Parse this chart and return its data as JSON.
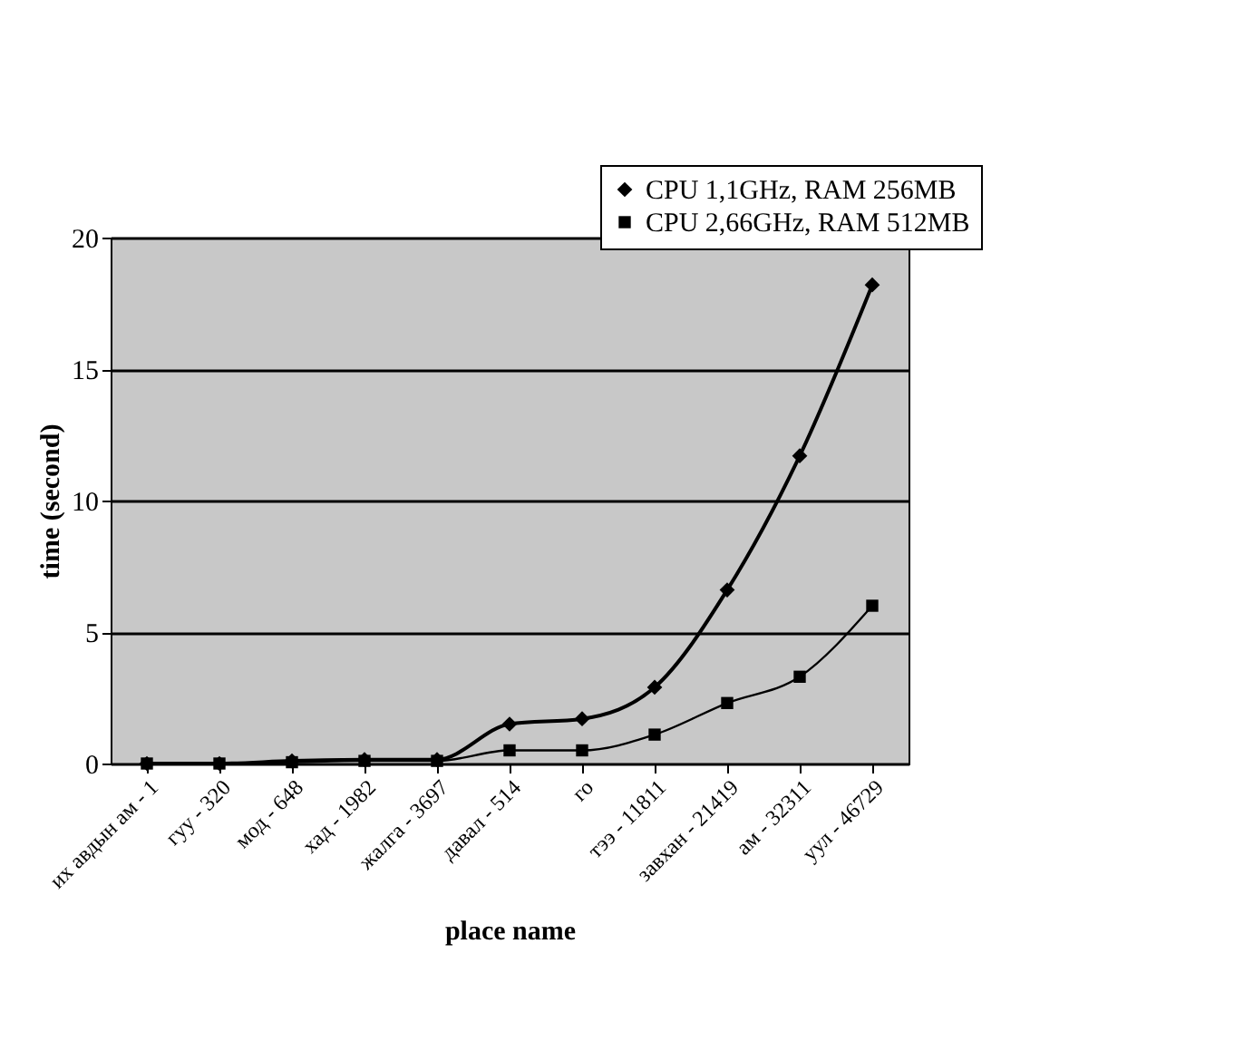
{
  "chart_data": {
    "type": "line",
    "xlabel": "place name",
    "ylabel": "time (second)",
    "categories": [
      "их авдын ам - 1",
      "гуу - 320",
      "мод - 648",
      "хад - 1982",
      "жалга - 3697",
      "давал - 514",
      "го",
      "тээ - 11811",
      "завхан - 21419",
      "ам - 32311",
      "уул - 46729"
    ],
    "series": [
      {
        "name": "CPU 1,1GHz, RAM 256MB",
        "color": "#000000",
        "marker": "diamond",
        "values": [
          0,
          0,
          0.1,
          0.15,
          0.15,
          1.5,
          1.7,
          2.9,
          6.6,
          11.7,
          18.2
        ]
      },
      {
        "name": "CPU 2,66GHz, RAM 512MB",
        "color": "#000000",
        "marker": "square",
        "values": [
          0,
          0,
          0.05,
          0.1,
          0.1,
          0.5,
          0.5,
          1.1,
          2.3,
          3.3,
          6.0
        ]
      }
    ],
    "ylim": [
      0,
      20
    ],
    "yticks": [
      0,
      5,
      10,
      15,
      20
    ],
    "grid": "y",
    "legend": "top right"
  }
}
